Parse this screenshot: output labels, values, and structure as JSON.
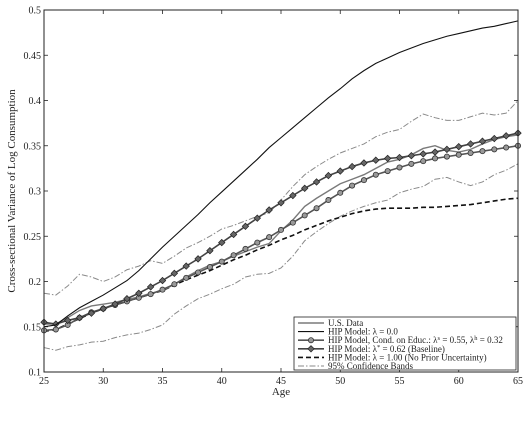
{
  "chart_data": {
    "type": "line",
    "xlabel": "Age",
    "ylabel": "Cross-sectional Variance of Log Consumption",
    "xlim": [
      25,
      65
    ],
    "ylim": [
      0.1,
      0.5
    ],
    "xticks": [
      25,
      30,
      35,
      40,
      45,
      50,
      55,
      60,
      65
    ],
    "yticks": [
      0.1,
      0.15,
      0.2,
      0.25,
      0.3,
      0.35,
      0.4,
      0.45,
      0.5
    ],
    "ytick_labels": [
      "0.1",
      "0.15",
      "0.2",
      "0.25",
      "0.3",
      "0.35",
      "0.4",
      "0.45",
      "0.5"
    ],
    "legend_position": "bottom-right",
    "series": [
      {
        "name": "U.S. Data",
        "style": "solid-gray",
        "color": "#777777",
        "x": [
          25,
          26,
          27,
          28,
          29,
          30,
          31,
          32,
          33,
          34,
          35,
          36,
          37,
          38,
          39,
          40,
          41,
          42,
          43,
          44,
          45,
          46,
          47,
          48,
          49,
          50,
          51,
          52,
          53,
          54,
          55,
          56,
          57,
          58,
          59,
          60,
          61,
          62,
          63,
          64,
          65
        ],
        "y": [
          0.153,
          0.153,
          0.16,
          0.168,
          0.173,
          0.175,
          0.177,
          0.18,
          0.183,
          0.187,
          0.19,
          0.197,
          0.205,
          0.212,
          0.218,
          0.222,
          0.228,
          0.233,
          0.238,
          0.242,
          0.256,
          0.268,
          0.283,
          0.292,
          0.3,
          0.308,
          0.313,
          0.318,
          0.325,
          0.332,
          0.335,
          0.34,
          0.347,
          0.35,
          0.345,
          0.343,
          0.346,
          0.352,
          0.357,
          0.36,
          0.362
        ]
      },
      {
        "name": "HIP Model: λ = 0.0",
        "segments": [
          "HIP Model: ",
          "λ",
          " = 0.0"
        ],
        "style": "solid-black",
        "color": "#111111",
        "x": [
          25,
          26,
          27,
          28,
          29,
          30,
          31,
          32,
          33,
          34,
          35,
          36,
          37,
          38,
          39,
          40,
          41,
          42,
          43,
          44,
          45,
          46,
          47,
          48,
          49,
          50,
          51,
          52,
          53,
          54,
          55,
          56,
          57,
          58,
          59,
          60,
          61,
          62,
          63,
          64,
          65
        ],
        "y": [
          0.15,
          0.152,
          0.162,
          0.171,
          0.178,
          0.185,
          0.193,
          0.201,
          0.212,
          0.225,
          0.238,
          0.25,
          0.262,
          0.274,
          0.287,
          0.299,
          0.311,
          0.323,
          0.335,
          0.348,
          0.359,
          0.37,
          0.381,
          0.392,
          0.403,
          0.413,
          0.424,
          0.433,
          0.441,
          0.447,
          0.453,
          0.458,
          0.463,
          0.467,
          0.471,
          0.474,
          0.477,
          0.48,
          0.482,
          0.485,
          0.488
        ]
      },
      {
        "name": "HIP Model, Cond. on Educ.: λs = 0.55, λh = 0.32",
        "segments": [
          "HIP Model, Cond. on Educ.: ",
          "λ",
          "s",
          " = 0.55, ",
          "λ",
          "h",
          " = 0.32"
        ],
        "style": "circles",
        "color": "#555555",
        "x": [
          25,
          26,
          27,
          28,
          29,
          30,
          31,
          32,
          33,
          34,
          35,
          36,
          37,
          38,
          39,
          40,
          41,
          42,
          43,
          44,
          45,
          46,
          47,
          48,
          49,
          50,
          51,
          52,
          53,
          54,
          55,
          56,
          57,
          58,
          59,
          60,
          61,
          62,
          63,
          64,
          65
        ],
        "y": [
          0.146,
          0.147,
          0.152,
          0.16,
          0.166,
          0.17,
          0.174,
          0.178,
          0.182,
          0.186,
          0.191,
          0.197,
          0.204,
          0.21,
          0.216,
          0.222,
          0.229,
          0.236,
          0.243,
          0.249,
          0.257,
          0.265,
          0.273,
          0.281,
          0.29,
          0.298,
          0.306,
          0.312,
          0.318,
          0.322,
          0.326,
          0.33,
          0.333,
          0.336,
          0.338,
          0.34,
          0.342,
          0.344,
          0.346,
          0.348,
          0.35
        ]
      },
      {
        "name": "HIP Model: λ* = 0.62 (Baseline)",
        "segments": [
          "HIP Model: ",
          "λ",
          "*",
          " = 0.62 (Baseline)"
        ],
        "style": "diamonds",
        "color": "#444444",
        "x": [
          25,
          26,
          27,
          28,
          29,
          30,
          31,
          32,
          33,
          34,
          35,
          36,
          37,
          38,
          39,
          40,
          41,
          42,
          43,
          44,
          45,
          46,
          47,
          48,
          49,
          50,
          51,
          52,
          53,
          54,
          55,
          56,
          57,
          58,
          59,
          60,
          61,
          62,
          63,
          64,
          65
        ],
        "y": [
          0.155,
          0.153,
          0.157,
          0.16,
          0.165,
          0.17,
          0.175,
          0.181,
          0.187,
          0.194,
          0.201,
          0.209,
          0.217,
          0.225,
          0.234,
          0.243,
          0.252,
          0.261,
          0.27,
          0.279,
          0.287,
          0.295,
          0.303,
          0.31,
          0.317,
          0.322,
          0.327,
          0.331,
          0.334,
          0.336,
          0.337,
          0.339,
          0.341,
          0.343,
          0.346,
          0.349,
          0.352,
          0.355,
          0.358,
          0.361,
          0.364
        ]
      },
      {
        "name": "HIP Model: λ = 1.00 (No Prior Uncertainty)",
        "segments": [
          "HIP Model: ",
          "λ",
          " = 1.00 (No Prior Uncertainty)"
        ],
        "style": "dashed-black",
        "color": "#111111",
        "x": [
          25,
          26,
          27,
          28,
          29,
          30,
          31,
          32,
          33,
          34,
          35,
          36,
          37,
          38,
          39,
          40,
          41,
          42,
          43,
          44,
          45,
          46,
          47,
          48,
          49,
          50,
          51,
          52,
          53,
          54,
          55,
          56,
          57,
          58,
          59,
          60,
          61,
          62,
          63,
          64,
          65
        ],
        "y": [
          0.145,
          0.147,
          0.153,
          0.159,
          0.165,
          0.17,
          0.174,
          0.178,
          0.182,
          0.186,
          0.19,
          0.196,
          0.202,
          0.207,
          0.212,
          0.218,
          0.224,
          0.229,
          0.235,
          0.24,
          0.246,
          0.251,
          0.257,
          0.262,
          0.267,
          0.271,
          0.275,
          0.278,
          0.28,
          0.281,
          0.281,
          0.281,
          0.282,
          0.282,
          0.283,
          0.284,
          0.285,
          0.287,
          0.289,
          0.291,
          0.292
        ]
      },
      {
        "name": "95% Confidence Bands",
        "style": "dashdot-gray",
        "color": "#888888",
        "bands": [
          {
            "x": [
              25,
              26,
              27,
              28,
              29,
              30,
              31,
              32,
              33,
              34,
              35,
              36,
              37,
              38,
              39,
              40,
              41,
              42,
              43,
              44,
              45,
              46,
              47,
              48,
              49,
              50,
              51,
              52,
              53,
              54,
              55,
              56,
              57,
              58,
              59,
              60,
              61,
              62,
              63,
              64,
              65
            ],
            "y": [
              0.187,
              0.185,
              0.195,
              0.208,
              0.205,
              0.2,
              0.205,
              0.213,
              0.217,
              0.223,
              0.22,
              0.228,
              0.237,
              0.243,
              0.25,
              0.258,
              0.262,
              0.267,
              0.272,
              0.276,
              0.29,
              0.305,
              0.318,
              0.327,
              0.335,
              0.342,
              0.347,
              0.352,
              0.36,
              0.365,
              0.368,
              0.377,
              0.385,
              0.381,
              0.378,
              0.378,
              0.382,
              0.386,
              0.384,
              0.386,
              0.4
            ]
          },
          {
            "x": [
              25,
              26,
              27,
              28,
              29,
              30,
              31,
              32,
              33,
              34,
              35,
              36,
              37,
              38,
              39,
              40,
              41,
              42,
              43,
              44,
              45,
              46,
              47,
              48,
              49,
              50,
              51,
              52,
              53,
              54,
              55,
              56,
              57,
              58,
              59,
              60,
              61,
              62,
              63,
              64,
              65
            ],
            "y": [
              0.127,
              0.124,
              0.128,
              0.13,
              0.133,
              0.134,
              0.138,
              0.141,
              0.143,
              0.147,
              0.152,
              0.164,
              0.173,
              0.181,
              0.186,
              0.192,
              0.197,
              0.205,
              0.208,
              0.209,
              0.215,
              0.228,
              0.245,
              0.255,
              0.264,
              0.272,
              0.278,
              0.283,
              0.287,
              0.29,
              0.298,
              0.302,
              0.305,
              0.313,
              0.315,
              0.31,
              0.306,
              0.31,
              0.318,
              0.323,
              0.33
            ]
          }
        ]
      }
    ]
  }
}
